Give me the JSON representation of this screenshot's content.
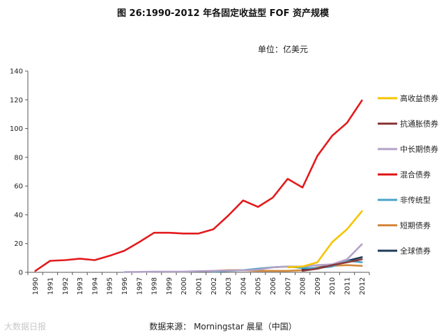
{
  "header": {
    "title": "图 26:1990-2012 年各固定收益型 FOF 资产规模",
    "unit": "单位：亿美元"
  },
  "footer": {
    "source": "数据来源：  Morningstar  晨星（中国）",
    "watermark": "大数据日报"
  },
  "chart_data": {
    "type": "line",
    "title": "图 26:1990-2012 年各固定收益型 FOF 资产规模",
    "ylabel": "单位：亿美元",
    "xlabel": "",
    "ylim": [
      0,
      140
    ],
    "yticks": [
      0,
      20,
      40,
      60,
      80,
      100,
      120,
      140
    ],
    "x": [
      "1990",
      "1991",
      "1992",
      "1993",
      "1994",
      "1995",
      "1996",
      "1997",
      "1998",
      "1999",
      "2000",
      "2001",
      "2002",
      "2003",
      "2004",
      "2005",
      "2006",
      "2007",
      "2008",
      "2009",
      "2010",
      "2011",
      "2012"
    ],
    "legend_position": "right",
    "series": [
      {
        "name": "高收益债券",
        "color": "#f5c400",
        "values": [
          null,
          null,
          null,
          null,
          null,
          null,
          null,
          null,
          null,
          null,
          null,
          null,
          null,
          null,
          null,
          null,
          null,
          3.5,
          4,
          7,
          21,
          30,
          42.5
        ]
      },
      {
        "name": "抗通胀债券",
        "color": "#8b3a3a",
        "values": [
          null,
          null,
          null,
          null,
          null,
          null,
          null,
          null,
          null,
          null,
          null,
          null,
          null,
          null,
          null,
          null,
          null,
          null,
          1,
          2.5,
          5,
          7,
          9
        ]
      },
      {
        "name": "中长期债券",
        "color": "#b3a2c7",
        "values": [
          null,
          null,
          null,
          null,
          null,
          null,
          0.2,
          0.3,
          0.5,
          0.5,
          0.5,
          0.8,
          1,
          1.2,
          1.4,
          1.8,
          3.5,
          4,
          4,
          5,
          5.5,
          9,
          19.5
        ]
      },
      {
        "name": "混合债券",
        "color": "#e31a1c",
        "values": [
          1,
          8,
          8.5,
          9.5,
          8.5,
          11.5,
          15,
          21,
          27.5,
          27.5,
          27,
          27,
          30,
          39.5,
          50,
          45.5,
          52,
          65,
          59,
          81,
          95,
          104,
          119.5
        ]
      },
      {
        "name": "非传统型",
        "color": "#4aa3c8",
        "values": [
          null,
          null,
          null,
          null,
          null,
          null,
          null,
          null,
          null,
          null,
          null,
          null,
          0.5,
          1,
          1.5,
          2.5,
          3.5,
          4,
          3,
          3,
          4,
          8,
          7
        ]
      },
      {
        "name": "短期债券",
        "color": "#d4883a",
        "values": [
          null,
          null,
          null,
          null,
          null,
          null,
          null,
          null,
          null,
          null,
          null,
          null,
          1,
          1.5,
          1.5,
          1,
          1,
          1,
          1.5,
          3.5,
          4.5,
          5,
          4.5
        ]
      },
      {
        "name": "全球债券",
        "color": "#1f3b57",
        "values": [
          null,
          null,
          null,
          null,
          null,
          null,
          null,
          null,
          null,
          null,
          null,
          null,
          null,
          null,
          null,
          null,
          null,
          null,
          2,
          3,
          5,
          8,
          10.5
        ]
      }
    ]
  }
}
